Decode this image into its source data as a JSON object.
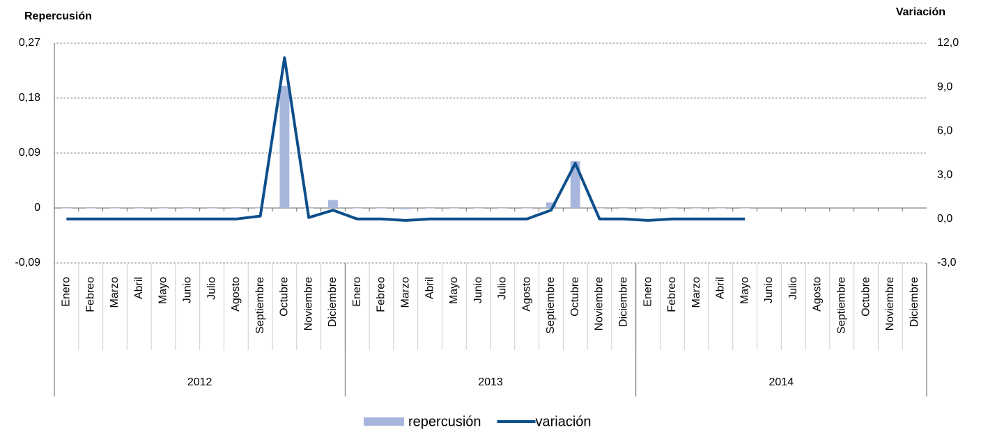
{
  "chart_data": {
    "type": "bar-line",
    "y_title": "Repercusión",
    "y2_title": "Variación",
    "categories": [
      "Enero",
      "Febreo",
      "Marzo",
      "Abril",
      "Mayo",
      "Junio",
      "Julio",
      "Agosto",
      "Septiembre",
      "Octubre",
      "Noviembre",
      "Diciembre",
      "Enero",
      "Febreo",
      "Marzo",
      "Abril",
      "Mayo",
      "Junio",
      "Julio",
      "Agosto",
      "Septiembre",
      "Octubre",
      "Noviembre",
      "Diciembre",
      "Enero",
      "Febreo",
      "Marzo",
      "Abril",
      "Mayo",
      "Junio",
      "Julio",
      "Agosto",
      "Septiembre",
      "Octubre",
      "Noviembre",
      "Diciembre"
    ],
    "category_groups": [
      "2012",
      "2013",
      "2014"
    ],
    "series": [
      {
        "name": "repercusión",
        "type": "bar",
        "color": "#a8b6de",
        "values": [
          0,
          0,
          0,
          0,
          0,
          0,
          0,
          0,
          0,
          0.2,
          0,
          0.013,
          0,
          0,
          -0.002,
          0,
          0,
          0,
          0,
          0,
          0.009,
          0.077,
          0,
          0,
          0,
          0,
          0,
          0,
          0,
          null,
          null,
          null,
          null,
          null,
          null,
          null
        ]
      },
      {
        "name": "variación",
        "type": "line",
        "axis": "y2",
        "color": "#0d4f8b",
        "values": [
          0,
          0,
          0,
          0,
          0,
          0,
          0,
          0,
          0.2,
          11.0,
          0.1,
          0.6,
          0,
          0,
          -0.1,
          0,
          0,
          0,
          0,
          0,
          0.6,
          3.8,
          0,
          0,
          -0.1,
          0,
          0,
          0,
          0,
          null,
          null,
          null,
          null,
          null,
          null,
          null
        ]
      }
    ],
    "ylim": [
      -0.09,
      0.27
    ],
    "yticks": [
      {
        "value": -0.09,
        "label": "-0,09"
      },
      0,
      {
        "value": 0.09,
        "label": "0,09"
      },
      {
        "value": 0.18,
        "label": "0,18"
      },
      {
        "value": 0.27,
        "label": "0,27"
      }
    ],
    "y2lim": [
      -3,
      12
    ],
    "y2ticks": [
      {
        "value": -3,
        "label": "-3,0"
      },
      {
        "value": 0,
        "label": "0,0"
      },
      {
        "value": 3,
        "label": "3,0"
      },
      {
        "value": 6,
        "label": "6,0"
      },
      {
        "value": 9,
        "label": "9,0"
      },
      {
        "value": 12,
        "label": "12,0"
      }
    ],
    "grid": true,
    "legend": "bottom"
  }
}
